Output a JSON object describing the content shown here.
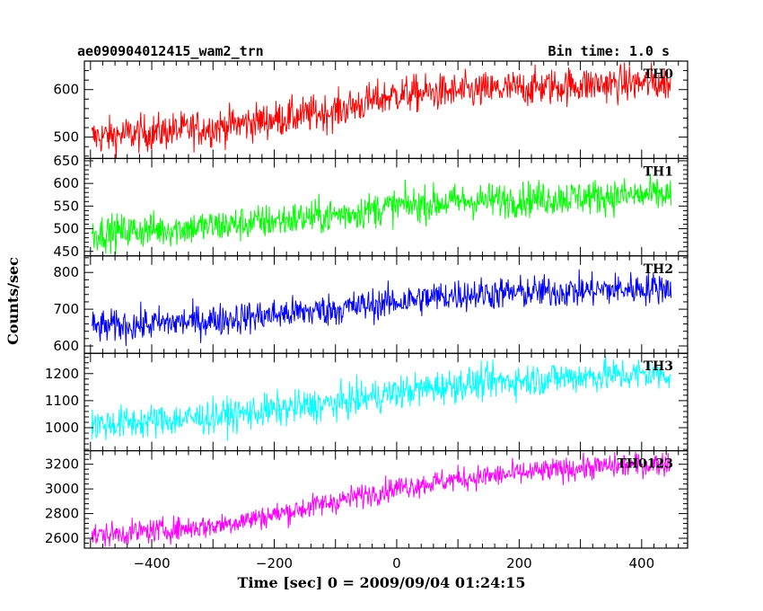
{
  "header": {
    "title": "ae090904012415_wam2_trn",
    "bin_time": "Bin time: 1.0 s"
  },
  "axes": {
    "xlabel": "Time [sec] 0 = 2009/09/04 01:24:15",
    "ylabel": "Counts/sec"
  },
  "chart_data": {
    "type": "line",
    "x_range": [
      -510,
      475
    ],
    "x_ticks": [
      -400,
      -200,
      0,
      200,
      400
    ],
    "x_ticks_labels": [
      "−400",
      "−200",
      "0",
      "200",
      "400"
    ],
    "data_x_range": [
      -498,
      448
    ],
    "panels": [
      {
        "name": "TH0",
        "color": "#ff0000",
        "ylim": [
          455,
          660
        ],
        "yticks": [
          500,
          600
        ],
        "trend": [
          [
            -498,
            500
          ],
          [
            -300,
            520
          ],
          [
            -100,
            555
          ],
          [
            0,
            590
          ],
          [
            100,
            595
          ],
          [
            300,
            610
          ],
          [
            448,
            615
          ]
        ],
        "noise": 28
      },
      {
        "name": "TH1",
        "color": "#00ff00",
        "ylim": [
          440,
          655
        ],
        "yticks": [
          450,
          500,
          550,
          600,
          650
        ],
        "trend": [
          [
            -498,
            490
          ],
          [
            -300,
            505
          ],
          [
            -100,
            530
          ],
          [
            0,
            550
          ],
          [
            100,
            560
          ],
          [
            300,
            570
          ],
          [
            448,
            575
          ]
        ],
        "noise": 28
      },
      {
        "name": "TH2",
        "color": "#0000ff",
        "ylim": [
          580,
          845
        ],
        "yticks": [
          600,
          700,
          800
        ],
        "trend": [
          [
            -498,
            650
          ],
          [
            -300,
            670
          ],
          [
            -100,
            700
          ],
          [
            0,
            720
          ],
          [
            100,
            740
          ],
          [
            300,
            750
          ],
          [
            448,
            760
          ]
        ],
        "noise": 32
      },
      {
        "name": "TH3",
        "color": "#00ffff",
        "ylim": [
          915,
          1275
        ],
        "yticks": [
          1000,
          1100,
          1200
        ],
        "trend": [
          [
            -498,
            1010
          ],
          [
            -300,
            1040
          ],
          [
            -100,
            1090
          ],
          [
            0,
            1130
          ],
          [
            100,
            1160
          ],
          [
            300,
            1190
          ],
          [
            448,
            1200
          ]
        ],
        "noise": 45
      },
      {
        "name": "TH0123",
        "color": "#ff00ff",
        "ylim": [
          2520,
          3310
        ],
        "yticks": [
          2600,
          2800,
          3000,
          3200
        ],
        "trend": [
          [
            -498,
            2620
          ],
          [
            -300,
            2700
          ],
          [
            -200,
            2790
          ],
          [
            -100,
            2900
          ],
          [
            0,
            3010
          ],
          [
            100,
            3080
          ],
          [
            300,
            3170
          ],
          [
            448,
            3210
          ]
        ],
        "noise": 70
      }
    ]
  }
}
